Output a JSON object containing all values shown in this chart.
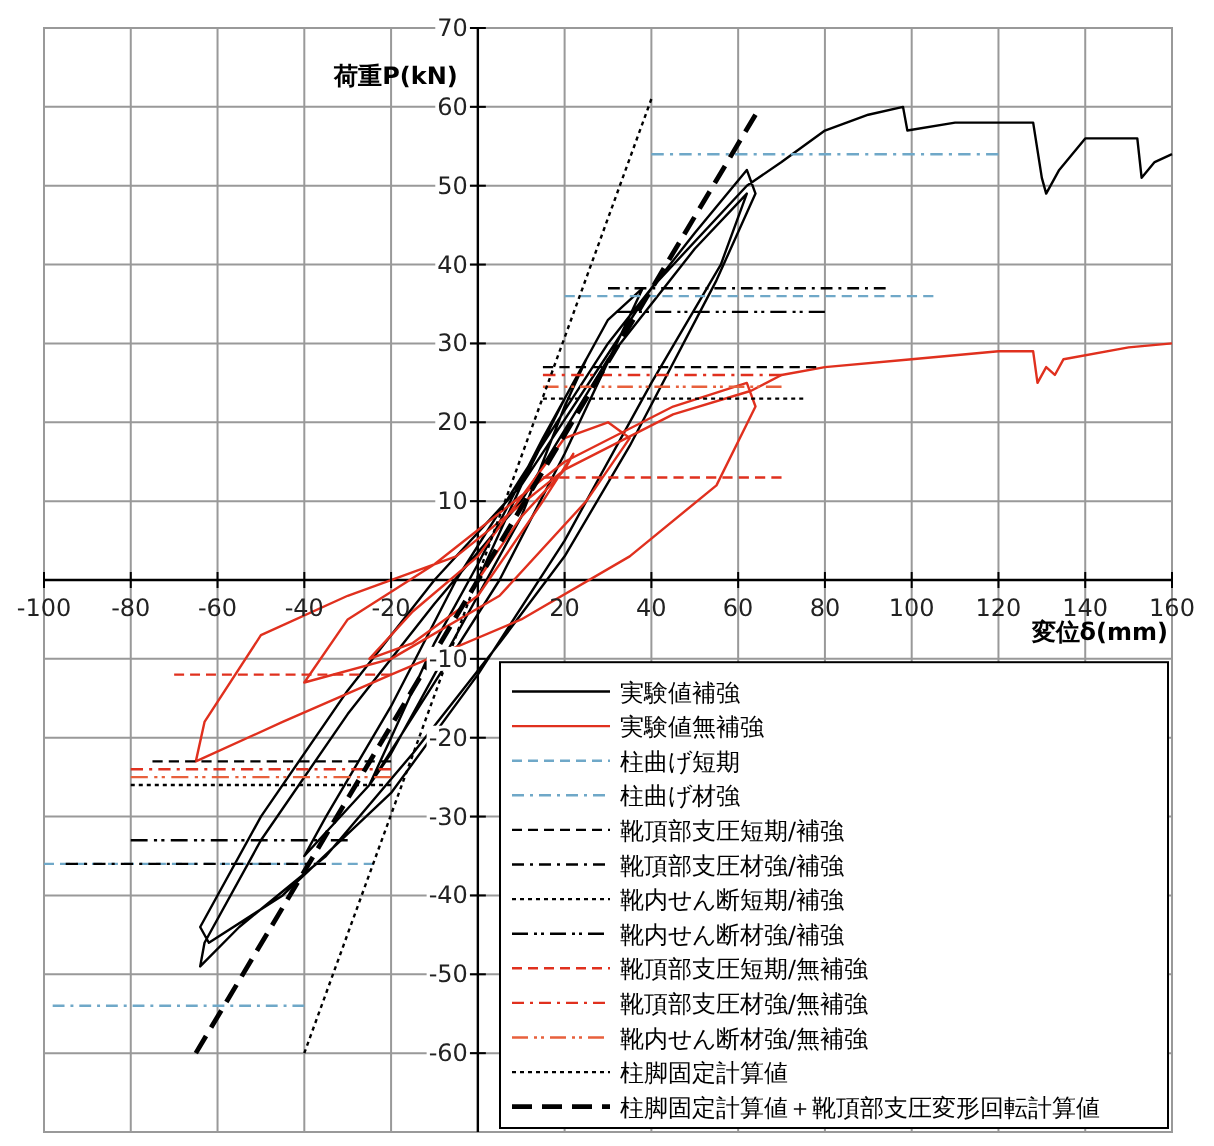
{
  "chart_data": {
    "type": "line",
    "xlabel": "変位δ(mm)",
    "ylabel": "荷重P(kN)",
    "xlim": [
      -100,
      160
    ],
    "ylim": [
      -70,
      70
    ],
    "xticks": [
      -100,
      -80,
      -60,
      -40,
      -20,
      20,
      40,
      60,
      80,
      100,
      120,
      140,
      160
    ],
    "yticks": [
      -60,
      -50,
      -40,
      -30,
      -20,
      -10,
      10,
      20,
      30,
      40,
      50,
      60,
      70
    ],
    "grid": true,
    "legend": "bottom right",
    "series": [
      {
        "name": "実験値補強",
        "color": "#000000",
        "line_style": "solid",
        "x": [
          0,
          10,
          20,
          25,
          20,
          10,
          0,
          -10,
          -20,
          -25,
          -20,
          -10,
          0,
          15,
          30,
          38,
          32,
          20,
          5,
          -10,
          -25,
          -40,
          -35,
          -20,
          -5,
          10,
          30,
          50,
          62,
          64,
          55,
          35,
          20,
          5,
          -15,
          -35,
          -55,
          -64,
          -63,
          -50,
          -30,
          -10,
          10,
          30,
          50,
          62,
          56,
          40,
          20,
          0,
          -20,
          -45,
          -62,
          -64,
          -50,
          -30,
          -10,
          10,
          40,
          62,
          70,
          80,
          90,
          98,
          99,
          110,
          120,
          128,
          130,
          131,
          134,
          140,
          150,
          152,
          153,
          156,
          160
        ],
        "values": [
          0,
          12,
          23,
          28,
          22,
          8,
          -2,
          -12,
          -22,
          -26,
          -20,
          -8,
          2,
          18,
          33,
          37,
          30,
          16,
          0,
          -13,
          -26,
          -35,
          -30,
          -16,
          0,
          13,
          30,
          44,
          52,
          49,
          38,
          17,
          3,
          -8,
          -22,
          -35,
          -44,
          -49,
          -46,
          -33,
          -17,
          -3,
          10,
          28,
          42,
          49,
          40,
          25,
          5,
          -12,
          -27,
          -40,
          -46,
          -44,
          -30,
          -14,
          0,
          12,
          37,
          50,
          53,
          57,
          59,
          60,
          57,
          58,
          58,
          58,
          51,
          49,
          52,
          56,
          56,
          56,
          51,
          53,
          54
        ]
      },
      {
        "name": "実験値無補強",
        "color": "#e0301e",
        "line_style": "solid",
        "x": [
          0,
          10,
          20,
          22,
          15,
          0,
          -15,
          -25,
          -15,
          0,
          20,
          30,
          35,
          25,
          5,
          -20,
          -40,
          -30,
          -10,
          20,
          45,
          62,
          64,
          55,
          35,
          10,
          -20,
          -45,
          -65,
          -63,
          -50,
          -30,
          -5,
          20,
          45,
          63,
          70,
          80,
          100,
          120,
          128,
          129,
          131,
          133,
          135,
          150,
          160
        ],
        "values": [
          0,
          8,
          14,
          16,
          10,
          -2,
          -8,
          -10,
          -4,
          3,
          18,
          20,
          18,
          10,
          -2,
          -10,
          -13,
          -5,
          2,
          15,
          22,
          25,
          22,
          12,
          3,
          -5,
          -12,
          -18,
          -23,
          -18,
          -7,
          -2,
          3,
          14,
          21,
          24,
          26,
          27,
          28,
          29,
          29,
          25,
          27,
          26,
          28,
          29.5,
          30
        ]
      },
      {
        "name": "柱曲げ短期",
        "color": "#6fa8c8",
        "line_style": "dashed",
        "x": [
          20,
          105,
          null,
          -100,
          -24
        ],
        "values": [
          36,
          36,
          null,
          -36,
          -36
        ]
      },
      {
        "name": "柱曲げ材強",
        "color": "#6fa8c8",
        "line_style": "dashdot",
        "x": [
          40,
          120,
          null,
          -98,
          -40
        ],
        "values": [
          54,
          54,
          null,
          -54,
          -54
        ]
      },
      {
        "name": "靴頂部支圧短期/補強",
        "color": "#000000",
        "line_style": "dashed",
        "x": [
          15,
          78,
          null,
          -75,
          -20
        ],
        "values": [
          27,
          27,
          null,
          -23,
          -23
        ]
      },
      {
        "name": "靴頂部支圧材強/補強",
        "color": "#000000",
        "line_style": "dashdot",
        "x": [
          30,
          94,
          null,
          -95,
          -35
        ],
        "values": [
          37,
          37,
          null,
          -36,
          -36
        ]
      },
      {
        "name": "靴内せん断短期/補強",
        "color": "#000000",
        "line_style": "dotted",
        "x": [
          15,
          75,
          null,
          -80,
          -20
        ],
        "values": [
          23,
          23,
          null,
          -26,
          -26
        ]
      },
      {
        "name": "靴内せん断材強/補強",
        "color": "#000000",
        "line_style": "dashdotdot",
        "x": [
          32,
          80,
          null,
          -80,
          -30
        ],
        "values": [
          34,
          34,
          null,
          -33,
          -33
        ]
      },
      {
        "name": "靴頂部支圧短期/無補強",
        "color": "#e0301e",
        "line_style": "dashed",
        "x": [
          15,
          70,
          null,
          -70,
          -20
        ],
        "values": [
          13,
          13,
          null,
          -12,
          -12
        ]
      },
      {
        "name": "靴頂部支圧材強/無補強",
        "color": "#e0301e",
        "line_style": "dashdot",
        "x": [
          15,
          70,
          null,
          -80,
          -20
        ],
        "values": [
          26,
          26,
          null,
          -24,
          -24
        ]
      },
      {
        "name": "靴内せん断材強/無補強",
        "color": "#e8603c",
        "line_style": "dashdotdot",
        "x": [
          15,
          70,
          null,
          -80,
          -20
        ],
        "values": [
          24.5,
          24.5,
          null,
          -25,
          -25
        ]
      },
      {
        "name": "柱脚固定計算値",
        "color": "#000000",
        "line_style": "dotted",
        "x": [
          -40,
          40
        ],
        "values": [
          -60,
          61
        ]
      },
      {
        "name": "柱脚固定計算値＋靴頂部支圧変形回転計算値",
        "color": "#000000",
        "line_style": "long_dashed",
        "x": [
          -65,
          64
        ],
        "values": [
          -60,
          59
        ]
      }
    ]
  }
}
